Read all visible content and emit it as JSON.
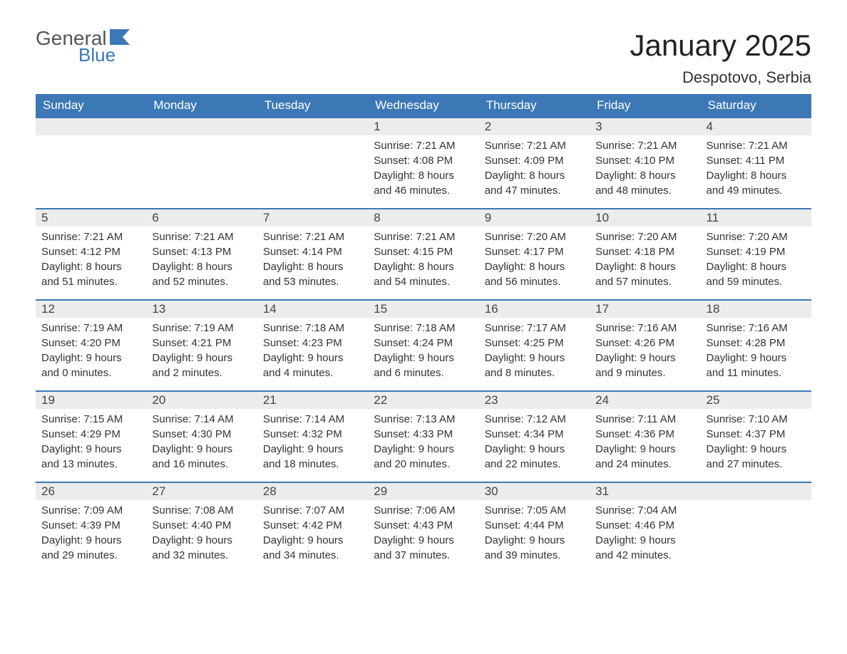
{
  "logo": {
    "word1": "General",
    "word2": "Blue"
  },
  "title": "January 2025",
  "location": "Despotovo, Serbia",
  "colors": {
    "header_bg": "#3b78b5",
    "header_text": "#ffffff",
    "daynum_bg": "#ececec",
    "border_top": "#3b78b5",
    "body_text": "#333333"
  },
  "day_names": [
    "Sunday",
    "Monday",
    "Tuesday",
    "Wednesday",
    "Thursday",
    "Friday",
    "Saturday"
  ],
  "weeks": [
    [
      null,
      null,
      null,
      {
        "n": "1",
        "sunrise": "7:21 AM",
        "sunset": "4:08 PM",
        "dh": "8",
        "dm": "46"
      },
      {
        "n": "2",
        "sunrise": "7:21 AM",
        "sunset": "4:09 PM",
        "dh": "8",
        "dm": "47"
      },
      {
        "n": "3",
        "sunrise": "7:21 AM",
        "sunset": "4:10 PM",
        "dh": "8",
        "dm": "48"
      },
      {
        "n": "4",
        "sunrise": "7:21 AM",
        "sunset": "4:11 PM",
        "dh": "8",
        "dm": "49"
      }
    ],
    [
      {
        "n": "5",
        "sunrise": "7:21 AM",
        "sunset": "4:12 PM",
        "dh": "8",
        "dm": "51"
      },
      {
        "n": "6",
        "sunrise": "7:21 AM",
        "sunset": "4:13 PM",
        "dh": "8",
        "dm": "52"
      },
      {
        "n": "7",
        "sunrise": "7:21 AM",
        "sunset": "4:14 PM",
        "dh": "8",
        "dm": "53"
      },
      {
        "n": "8",
        "sunrise": "7:21 AM",
        "sunset": "4:15 PM",
        "dh": "8",
        "dm": "54"
      },
      {
        "n": "9",
        "sunrise": "7:20 AM",
        "sunset": "4:17 PM",
        "dh": "8",
        "dm": "56"
      },
      {
        "n": "10",
        "sunrise": "7:20 AM",
        "sunset": "4:18 PM",
        "dh": "8",
        "dm": "57"
      },
      {
        "n": "11",
        "sunrise": "7:20 AM",
        "sunset": "4:19 PM",
        "dh": "8",
        "dm": "59"
      }
    ],
    [
      {
        "n": "12",
        "sunrise": "7:19 AM",
        "sunset": "4:20 PM",
        "dh": "9",
        "dm": "0"
      },
      {
        "n": "13",
        "sunrise": "7:19 AM",
        "sunset": "4:21 PM",
        "dh": "9",
        "dm": "2"
      },
      {
        "n": "14",
        "sunrise": "7:18 AM",
        "sunset": "4:23 PM",
        "dh": "9",
        "dm": "4"
      },
      {
        "n": "15",
        "sunrise": "7:18 AM",
        "sunset": "4:24 PM",
        "dh": "9",
        "dm": "6"
      },
      {
        "n": "16",
        "sunrise": "7:17 AM",
        "sunset": "4:25 PM",
        "dh": "9",
        "dm": "8"
      },
      {
        "n": "17",
        "sunrise": "7:16 AM",
        "sunset": "4:26 PM",
        "dh": "9",
        "dm": "9"
      },
      {
        "n": "18",
        "sunrise": "7:16 AM",
        "sunset": "4:28 PM",
        "dh": "9",
        "dm": "11"
      }
    ],
    [
      {
        "n": "19",
        "sunrise": "7:15 AM",
        "sunset": "4:29 PM",
        "dh": "9",
        "dm": "13"
      },
      {
        "n": "20",
        "sunrise": "7:14 AM",
        "sunset": "4:30 PM",
        "dh": "9",
        "dm": "16"
      },
      {
        "n": "21",
        "sunrise": "7:14 AM",
        "sunset": "4:32 PM",
        "dh": "9",
        "dm": "18"
      },
      {
        "n": "22",
        "sunrise": "7:13 AM",
        "sunset": "4:33 PM",
        "dh": "9",
        "dm": "20"
      },
      {
        "n": "23",
        "sunrise": "7:12 AM",
        "sunset": "4:34 PM",
        "dh": "9",
        "dm": "22"
      },
      {
        "n": "24",
        "sunrise": "7:11 AM",
        "sunset": "4:36 PM",
        "dh": "9",
        "dm": "24"
      },
      {
        "n": "25",
        "sunrise": "7:10 AM",
        "sunset": "4:37 PM",
        "dh": "9",
        "dm": "27"
      }
    ],
    [
      {
        "n": "26",
        "sunrise": "7:09 AM",
        "sunset": "4:39 PM",
        "dh": "9",
        "dm": "29"
      },
      {
        "n": "27",
        "sunrise": "7:08 AM",
        "sunset": "4:40 PM",
        "dh": "9",
        "dm": "32"
      },
      {
        "n": "28",
        "sunrise": "7:07 AM",
        "sunset": "4:42 PM",
        "dh": "9",
        "dm": "34"
      },
      {
        "n": "29",
        "sunrise": "7:06 AM",
        "sunset": "4:43 PM",
        "dh": "9",
        "dm": "37"
      },
      {
        "n": "30",
        "sunrise": "7:05 AM",
        "sunset": "4:44 PM",
        "dh": "9",
        "dm": "39"
      },
      {
        "n": "31",
        "sunrise": "7:04 AM",
        "sunset": "4:46 PM",
        "dh": "9",
        "dm": "42"
      },
      null
    ]
  ],
  "labels": {
    "sunrise": "Sunrise:",
    "sunset": "Sunset:",
    "daylight_prefix": "Daylight:",
    "hours_word": "hours",
    "and_word": "and",
    "minutes_word": "minutes."
  }
}
